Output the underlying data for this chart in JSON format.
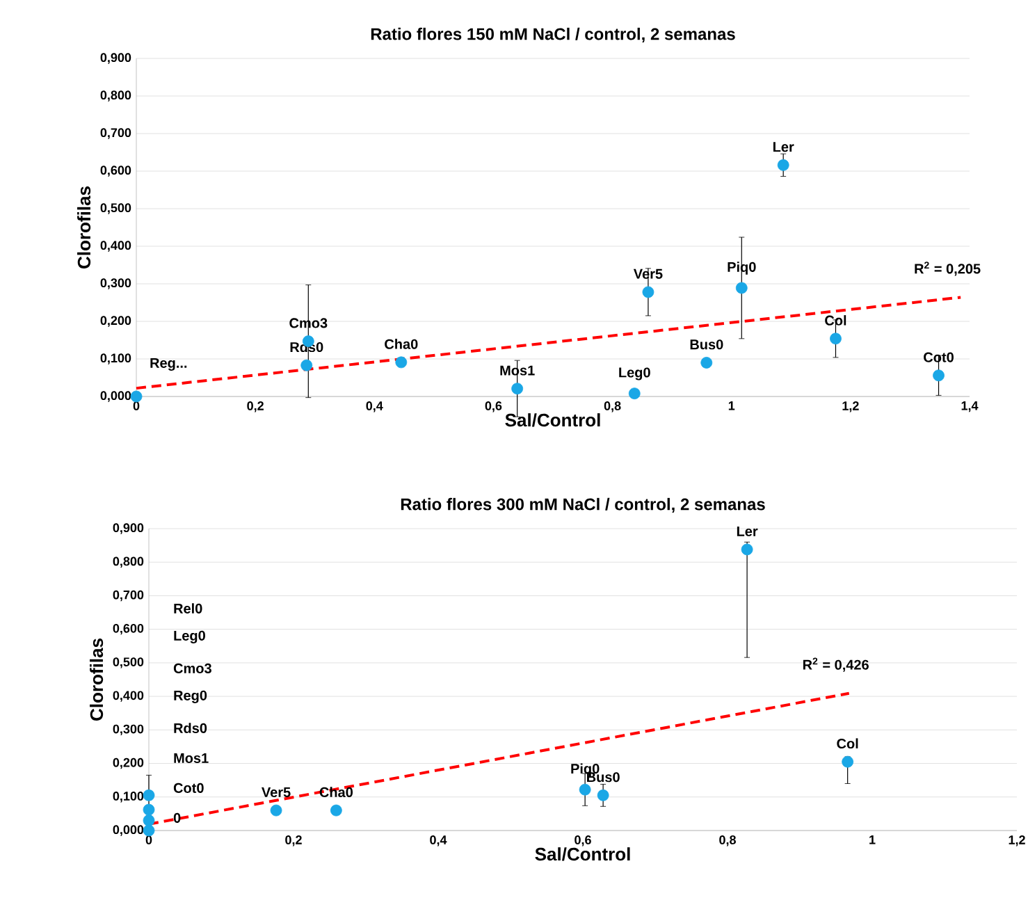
{
  "chart_data": [
    {
      "type": "scatter",
      "title": "Ratio flores 150 mM NaCl / control, 2 semanas",
      "xlabel": "Sal/Control",
      "ylabel": "Clorofilas",
      "xlim": [
        0,
        1.4
      ],
      "ylim": [
        0,
        0.9
      ],
      "xticks": [
        0,
        {
          "value": 0.2,
          "label": "0,2"
        },
        {
          "value": 0.4,
          "label": "0,4"
        },
        {
          "value": 0.6,
          "label": "0,6"
        },
        {
          "value": 0.8,
          "label": "0,8"
        },
        1,
        {
          "value": 1.2,
          "label": "1,2"
        },
        {
          "value": 1.4,
          "label": "1,4"
        }
      ],
      "yticks": [
        {
          "value": 0,
          "label": "0,000"
        },
        {
          "value": 0.1,
          "label": "0,100"
        },
        {
          "value": 0.2,
          "label": "0,200"
        },
        {
          "value": 0.3,
          "label": "0,300"
        },
        {
          "value": 0.4,
          "label": "0,400"
        },
        {
          "value": 0.5,
          "label": "0,500"
        },
        {
          "value": 0.6,
          "label": "0,600"
        },
        {
          "value": 0.7,
          "label": "0,700"
        },
        {
          "value": 0.8,
          "label": "0,800"
        },
        {
          "value": 0.9,
          "label": "0,900"
        }
      ],
      "grid": "y",
      "series": [
        {
          "marker": "circle",
          "color": "#1aa7e6",
          "x": [
            0,
            0.286,
            0.289,
            0.445,
            0.64,
            0.837,
            0.86,
            0.958,
            1.017,
            1.087,
            1.175,
            1.348
          ],
          "values": [
            0,
            0.083,
            0.147,
            0.091,
            0.021,
            0.008,
            0.278,
            0.09,
            0.289,
            0.616,
            0.154,
            0.056
          ],
          "errors": [
            null,
            null,
            0.15,
            null,
            0.075,
            null,
            0.063,
            null,
            0.135,
            0.03,
            0.05,
            0.053
          ]
        },
        {
          "type": "line",
          "marker": "none",
          "line_style": "dashed",
          "color": "#ff0000",
          "x": [
            0,
            1.385
          ],
          "values": [
            0.022,
            0.264
          ]
        }
      ],
      "annotations": [
        {
          "text": "Reg...",
          "x": 0,
          "y": 0
        },
        {
          "text": "Rds0",
          "x": 0.286,
          "y": 0.083
        },
        {
          "text": "Cmo3",
          "x": 0.289,
          "y": 0.147
        },
        {
          "text": "Cha0",
          "x": 0.445,
          "y": 0.091
        },
        {
          "text": "Mos1",
          "x": 0.64,
          "y": 0.021
        },
        {
          "text": "Leg0",
          "x": 0.837,
          "y": 0.008
        },
        {
          "text": "Ver5",
          "x": 0.86,
          "y": 0.278
        },
        {
          "text": "Bus0",
          "x": 0.958,
          "y": 0.09
        },
        {
          "text": "Piq0",
          "x": 1.017,
          "y": 0.289
        },
        {
          "text": "Ler",
          "x": 1.087,
          "y": 0.616
        },
        {
          "text": "Col",
          "x": 1.175,
          "y": 0.154
        },
        {
          "text": "Cot0",
          "x": 1.348,
          "y": 0.056
        },
        {
          "text": "R$^{2}$ = 0,205",
          "x": 1.385,
          "y": 0.264
        }
      ]
    },
    {
      "type": "scatter",
      "title": "Ratio flores 300 mM NaCl / control, 2 semanas",
      "xlabel": "Sal/Control",
      "ylabel": "Clorofilas",
      "xlim": [
        0,
        1.2
      ],
      "ylim": [
        0,
        0.9
      ],
      "xticks": [
        0,
        {
          "value": 0.2,
          "label": "0,2"
        },
        {
          "value": 0.4,
          "label": "0,4"
        },
        {
          "value": 0.6,
          "label": "0,6"
        },
        {
          "value": 0.8,
          "label": "0,8"
        },
        1,
        {
          "value": 1.2,
          "label": "1,2"
        }
      ],
      "yticks": [
        {
          "value": 0,
          "label": "0,000"
        },
        {
          "value": 0.1,
          "label": "0,100"
        },
        {
          "value": 0.2,
          "label": "0,200"
        },
        {
          "value": 0.3,
          "label": "0,300"
        },
        {
          "value": 0.4,
          "label": "0,400"
        },
        {
          "value": 0.5,
          "label": "0,500"
        },
        {
          "value": 0.6,
          "label": "0,600"
        },
        {
          "value": 0.7,
          "label": "0,700"
        },
        {
          "value": 0.8,
          "label": "0,800"
        },
        {
          "value": 0.9,
          "label": "0,900"
        }
      ],
      "grid": "y",
      "series": [
        {
          "marker": "circle",
          "color": "#1aa7e6",
          "x": [
            0,
            0,
            0,
            0,
            0.176,
            0.259,
            0.603,
            0.628,
            0.827,
            0.966
          ],
          "values": [
            0.105,
            0.062,
            0.03,
            0,
            0.06,
            0.06,
            0.122,
            0.105,
            0.838,
            0.205
          ],
          "errors": [
            0.06,
            null,
            null,
            null,
            null,
            null,
            0.048,
            0.033,
            [
              0.516,
              0.86
            ],
            [
              0.14,
              0.22
            ]
          ]
        },
        {
          "type": "line",
          "marker": "none",
          "line_style": "dashed",
          "color": "#ff0000",
          "x": [
            0,
            0.968
          ],
          "values": [
            0.019,
            0.409
          ]
        }
      ],
      "annotations": [
        "Rel0",
        "Leg0",
        "Cmo3",
        "Reg0",
        "Rds0",
        "Mos1",
        "Cot0",
        "0",
        {
          "text": "Ver5",
          "x": 0.176,
          "y": 0.06
        },
        {
          "text": "Cha0",
          "x": 0.259,
          "y": 0.06
        },
        {
          "text": "Piq0",
          "x": 0.603,
          "y": 0.122
        },
        {
          "text": "Bus0",
          "x": 0.628,
          "y": 0.105
        },
        {
          "text": "Ler",
          "x": 0.827,
          "y": 0.838
        },
        {
          "text": "Col",
          "x": 0.966,
          "y": 0.205
        },
        {
          "text": "R$^{2}$ = 0,426",
          "x": 0.968,
          "y": 0.409
        }
      ]
    }
  ]
}
